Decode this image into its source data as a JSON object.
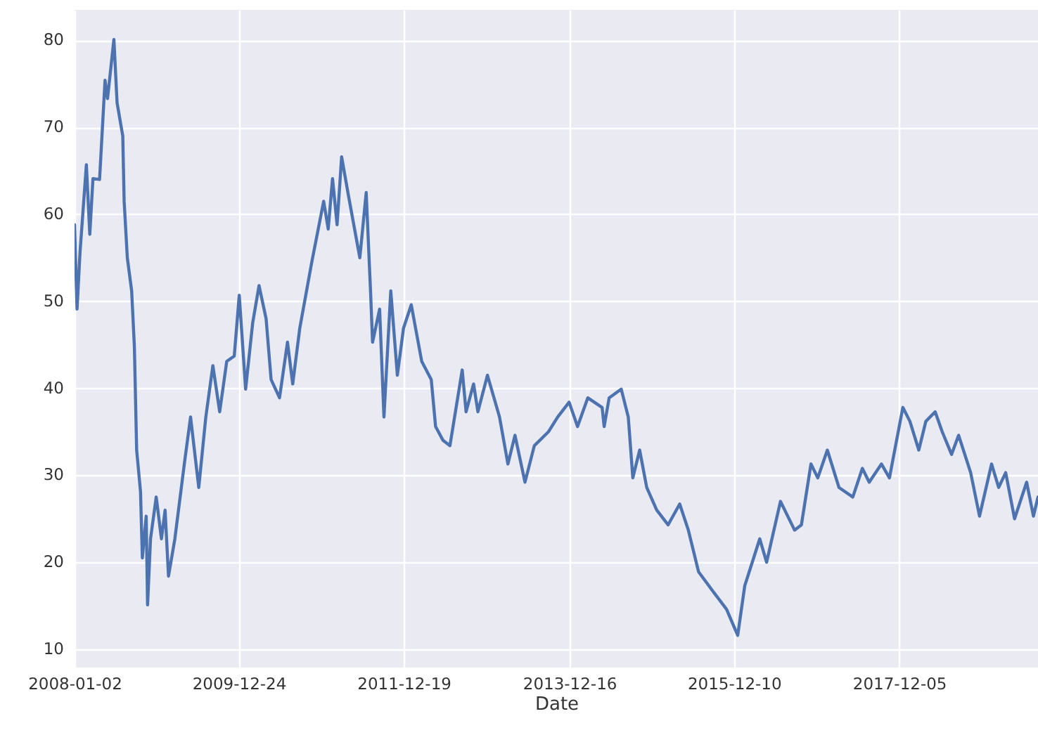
{
  "chart_data": {
    "type": "line",
    "xlabel": "Date",
    "xlim": [
      "2008-01-02",
      "2019-08-07"
    ],
    "xticks": [
      "2008-01-02",
      "2009-12-24",
      "2011-12-19",
      "2013-12-16",
      "2015-12-10",
      "2017-12-05"
    ],
    "ylim": [
      7.9,
      83.5
    ],
    "yticks": [
      10,
      20,
      30,
      40,
      50,
      60,
      70,
      80
    ],
    "grid": true,
    "marker": "none",
    "line_style": "solid",
    "series": [
      {
        "color": "#4c72b0",
        "x": [
          "2008-01-02",
          "2008-01-13",
          "2008-01-26",
          "2008-02-23",
          "2008-03-09",
          "2008-03-23",
          "2008-04-21",
          "2008-05-15",
          "2008-05-26",
          "2008-06-23",
          "2008-07-07",
          "2008-08-01",
          "2008-08-07",
          "2008-08-21",
          "2008-09-09",
          "2008-09-21",
          "2008-10-01",
          "2008-10-18",
          "2008-10-26",
          "2008-11-12",
          "2008-11-18",
          "2008-12-01",
          "2008-12-26",
          "2009-01-18",
          "2009-02-03",
          "2009-02-18",
          "2009-03-18",
          "2009-05-01",
          "2009-05-26",
          "2009-07-01",
          "2009-08-01",
          "2009-09-01",
          "2009-10-01",
          "2009-11-01",
          "2009-12-04",
          "2009-12-26",
          "2010-01-23",
          "2010-02-23",
          "2010-03-23",
          "2010-04-23",
          "2010-05-15",
          "2010-06-21",
          "2010-07-26",
          "2010-08-18",
          "2010-09-18",
          "2010-11-09",
          "2011-01-01",
          "2011-01-21",
          "2011-02-09",
          "2011-03-01",
          "2011-03-21",
          "2011-04-21",
          "2011-06-09",
          "2011-07-07",
          "2011-07-26",
          "2011-08-04",
          "2011-09-04",
          "2011-09-23",
          "2011-10-23",
          "2011-11-21",
          "2011-12-18",
          "2012-01-21",
          "2012-03-07",
          "2012-04-18",
          "2012-05-07",
          "2012-06-09",
          "2012-07-09",
          "2012-09-01",
          "2012-09-18",
          "2012-10-21",
          "2012-11-09",
          "2012-12-21",
          "2013-02-12",
          "2013-03-21",
          "2013-04-21",
          "2013-06-04",
          "2013-07-15",
          "2013-09-15",
          "2013-10-26",
          "2013-12-15",
          "2014-01-21",
          "2014-03-07",
          "2014-05-09",
          "2014-05-18",
          "2014-06-09",
          "2014-08-01",
          "2014-09-01",
          "2014-09-21",
          "2014-10-21",
          "2014-11-21",
          "2015-01-04",
          "2015-02-23",
          "2015-04-15",
          "2015-05-23",
          "2015-07-07",
          "2015-09-07",
          "2015-11-07",
          "2015-12-26",
          "2016-01-26",
          "2016-04-01",
          "2016-05-01",
          "2016-07-01",
          "2016-09-01",
          "2016-10-01",
          "2016-11-12",
          "2016-12-12",
          "2017-01-23",
          "2017-03-15",
          "2017-05-15",
          "2017-06-26",
          "2017-07-26",
          "2017-09-18",
          "2017-10-23",
          "2017-12-21",
          "2018-01-21",
          "2018-03-01",
          "2018-04-01",
          "2018-05-12",
          "2018-06-12",
          "2018-07-23",
          "2018-08-23",
          "2018-10-15",
          "2018-11-23",
          "2019-01-15",
          "2019-02-15",
          "2019-03-18",
          "2019-04-26",
          "2019-06-18",
          "2019-07-18",
          "2019-08-07"
        ],
        "values": [
          58.8,
          49.1,
          55.6,
          65.7,
          57.7,
          64.1,
          64,
          75.4,
          73.3,
          80.1,
          72.8,
          69,
          61.5,
          55,
          51.2,
          44.8,
          32.9,
          28.1,
          20.5,
          25.3,
          15.1,
          22.7,
          27.5,
          22.7,
          26,
          18.4,
          22.7,
          31.8,
          36.7,
          28.6,
          36.7,
          42.6,
          37.3,
          43.1,
          43.7,
          50.7,
          39.9,
          47.5,
          51.8,
          48,
          41,
          38.9,
          45.3,
          40.5,
          46.9,
          54.4,
          61.5,
          58.3,
          64.1,
          58.8,
          66.6,
          62,
          55,
          62.5,
          51.2,
          45.3,
          49.1,
          36.7,
          51.2,
          41.5,
          46.9,
          49.6,
          43.1,
          41,
          35.6,
          34,
          33.4,
          42.1,
          37.3,
          40.5,
          37.3,
          41.5,
          36.7,
          31.3,
          34.6,
          29.2,
          33.4,
          35,
          36.7,
          38.4,
          35.6,
          38.9,
          37.8,
          35.6,
          38.9,
          39.9,
          36.7,
          29.7,
          32.9,
          28.6,
          26,
          24.3,
          26.7,
          23.7,
          18.9,
          16.7,
          14.6,
          11.6,
          17.3,
          22.7,
          20,
          27,
          23.7,
          24.3,
          31.3,
          29.7,
          32.9,
          28.6,
          27.5,
          30.8,
          29.2,
          31.3,
          29.7,
          37.8,
          36.2,
          32.9,
          36.2,
          37.3,
          35,
          32.4,
          34.6,
          30.3,
          25.3,
          31.3,
          28.6,
          30.3,
          25,
          29.2,
          25.3,
          27.5
        ]
      }
    ]
  }
}
